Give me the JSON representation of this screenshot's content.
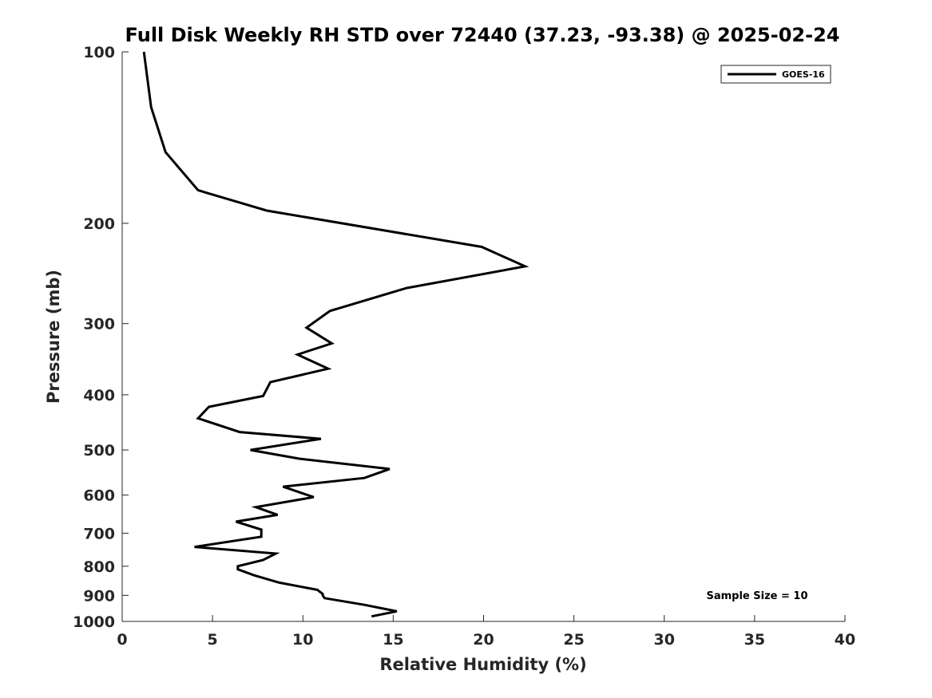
{
  "chart_data": {
    "type": "line",
    "title": "Full Disk Weekly RH STD over 72440 (37.23, -93.38) @ 2025-02-24",
    "xlabel": "Relative Humidity (%)",
    "ylabel": "Pressure (mb)",
    "xlim": [
      0,
      40
    ],
    "ylim": [
      1000,
      100
    ],
    "yscale": "log",
    "x_ticks": [
      "0",
      "5",
      "10",
      "15",
      "20",
      "25",
      "30",
      "35",
      "40"
    ],
    "y_ticks": [
      "100",
      "200",
      "300",
      "400",
      "500",
      "600",
      "700",
      "800",
      "900",
      "1000"
    ],
    "grid": false,
    "legend_position": "top-right",
    "annotation": "Sample Size = 10",
    "colors": {
      "line": "#000000",
      "axes": "#262626"
    },
    "series": [
      {
        "name": "GOES-16",
        "points": [
          [
            1.2,
            100
          ],
          [
            1.6,
            125
          ],
          [
            2.4,
            150
          ],
          [
            4.2,
            175
          ],
          [
            8.0,
            190
          ],
          [
            19.9,
            220
          ],
          [
            22.3,
            238
          ],
          [
            15.7,
            260
          ],
          [
            11.5,
            285
          ],
          [
            10.2,
            305
          ],
          [
            11.6,
            325
          ],
          [
            9.7,
            340
          ],
          [
            11.4,
            360
          ],
          [
            8.2,
            380
          ],
          [
            7.8,
            402
          ],
          [
            4.8,
            420
          ],
          [
            4.2,
            440
          ],
          [
            6.5,
            465
          ],
          [
            11.0,
            478
          ],
          [
            7.1,
            500
          ],
          [
            9.8,
            518
          ],
          [
            14.8,
            540
          ],
          [
            13.4,
            560
          ],
          [
            8.9,
            580
          ],
          [
            10.6,
            605
          ],
          [
            7.4,
            630
          ],
          [
            8.6,
            650
          ],
          [
            6.3,
            668
          ],
          [
            7.7,
            690
          ],
          [
            7.7,
            710
          ],
          [
            4.0,
            740
          ],
          [
            8.5,
            760
          ],
          [
            7.8,
            780
          ],
          [
            6.4,
            800
          ],
          [
            6.4,
            810
          ],
          [
            7.3,
            830
          ],
          [
            8.7,
            855
          ],
          [
            10.8,
            880
          ],
          [
            11.1,
            895
          ],
          [
            11.1,
            900
          ],
          [
            11.2,
            910
          ],
          [
            13.4,
            935
          ],
          [
            15.2,
            960
          ],
          [
            13.8,
            980
          ]
        ]
      }
    ]
  }
}
